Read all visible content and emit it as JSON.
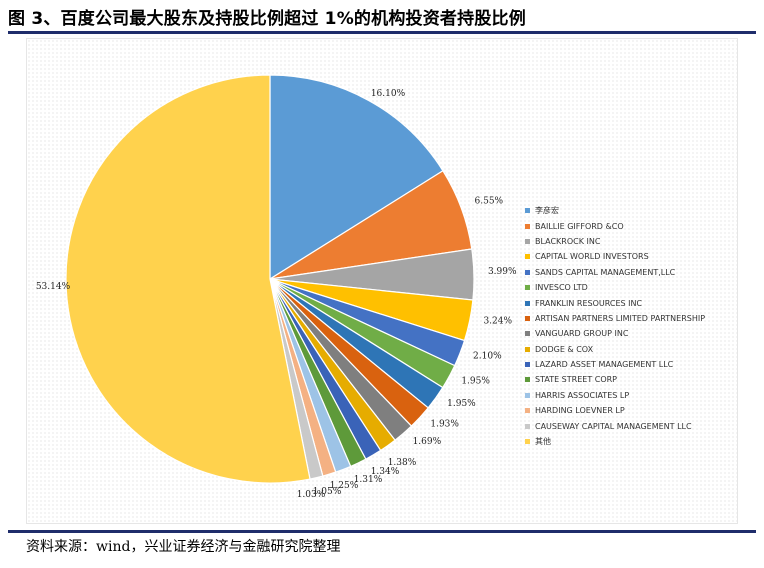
{
  "title": "图 3、百度公司最大股东及持股比例超过 1%的机构投资者持股比例",
  "source": "资料来源：wind，兴业证券经济与金融研究院整理",
  "chart_data": {
    "type": "pie",
    "title": "",
    "legend_position": "right",
    "start_angle": "12 o'clock",
    "direction": "clockwise",
    "slices": [
      {
        "name": "李彦宏",
        "value": 16.1,
        "label": "16.10%",
        "color": "#5b9bd5"
      },
      {
        "name": "BAILLIE GIFFORD &CO",
        "value": 6.55,
        "label": "6.55%",
        "color": "#ed7d31"
      },
      {
        "name": "BLACKROCK INC",
        "value": 3.99,
        "label": "3.99%",
        "color": "#a5a5a5"
      },
      {
        "name": "CAPITAL WORLD INVESTORS",
        "value": 3.24,
        "label": "3.24%",
        "color": "#ffc000"
      },
      {
        "name": "SANDS CAPITAL MANAGEMENT,LLC",
        "value": 2.1,
        "label": "2.10%",
        "color": "#4472c4"
      },
      {
        "name": "INVESCO LTD",
        "value": 1.95,
        "label": "1.95%",
        "color": "#70ad47"
      },
      {
        "name": "FRANKLIN RESOURCES INC",
        "value": 1.95,
        "label": "1.95%",
        "color": "#2e75b6"
      },
      {
        "name": "ARTISAN PARTNERS LIMITED PARTNERSHIP",
        "value": 1.93,
        "label": "1.93%",
        "color": "#d9620f"
      },
      {
        "name": "VANGUARD GROUP INC",
        "value": 1.69,
        "label": "1.69%",
        "color": "#7f7f7f"
      },
      {
        "name": "DODGE & COX",
        "value": 1.38,
        "label": "1.38%",
        "color": "#e6ac00"
      },
      {
        "name": "LAZARD ASSET MANAGEMENT LLC",
        "value": 1.34,
        "label": "1.34%",
        "color": "#3a63b8"
      },
      {
        "name": "STATE STREET CORP",
        "value": 1.31,
        "label": "1.31%",
        "color": "#5e9a3a"
      },
      {
        "name": "HARRIS ASSOCIATES LP",
        "value": 1.25,
        "label": "1.25%",
        "color": "#9dc3e6"
      },
      {
        "name": "HARDING LOEVNER LP",
        "value": 1.05,
        "label": "1.05%",
        "color": "#f4b183"
      },
      {
        "name": "CAUSEWAY CAPITAL MANAGEMENT LLC",
        "value": 1.03,
        "label": "1.03%",
        "color": "#c9c9c9"
      },
      {
        "name": "其他",
        "value": 53.14,
        "label": "53.14%",
        "color": "#ffd24d"
      }
    ]
  }
}
